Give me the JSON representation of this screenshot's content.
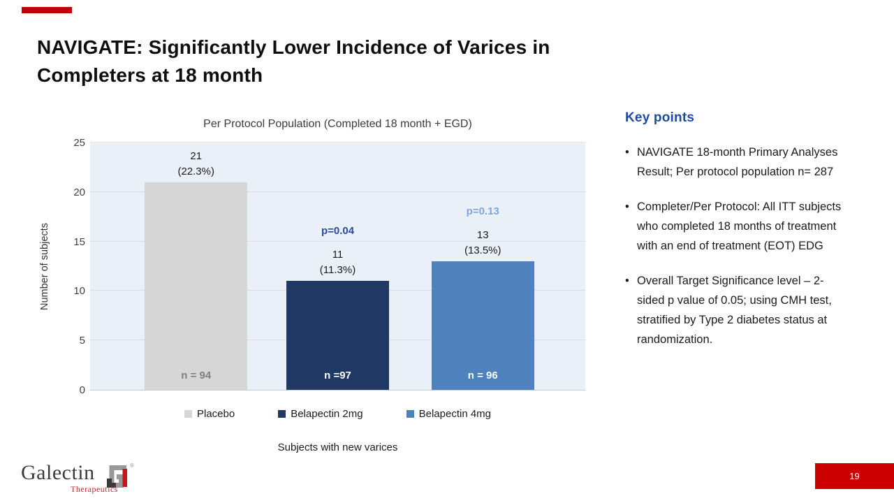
{
  "slide": {
    "title_line1": "NAVIGATE: Significantly Lower Incidence of Varices in",
    "title_line2": "Completers at 18 month",
    "page_number": "19"
  },
  "chart_data": {
    "type": "bar",
    "title": "Per Protocol Population (Completed 18 month + EGD)",
    "xlabel": "Subjects with new varices",
    "ylabel": "Number of subjects",
    "ylim": [
      0,
      25
    ],
    "yticks": [
      0,
      5,
      10,
      15,
      20,
      25
    ],
    "grid": true,
    "legend_position": "bottom",
    "plot_bg": "#EAF0F8",
    "categories": [
      "Placebo",
      "Belapectin 2mg",
      "Belapectin 4mg"
    ],
    "values": [
      21,
      11,
      13
    ],
    "bars": [
      {
        "category": "Placebo",
        "value": 21,
        "value_label": "21",
        "pct_label": "(22.3%)",
        "n_label": "n = 94",
        "n_color": "#7F7F7F",
        "p_label": "",
        "p_color": "",
        "color": "#D6D6D6"
      },
      {
        "category": "Belapectin 2mg",
        "value": 11,
        "value_label": "11",
        "pct_label": "(11.3%)",
        "n_label": "n =97",
        "n_color": "#FFFFFF",
        "p_label": "p=0.04",
        "p_color": "#2B4A9B",
        "color": "#1F3864"
      },
      {
        "category": "Belapectin 4mg",
        "value": 13,
        "value_label": "13",
        "pct_label": "(13.5%)",
        "n_label": "n = 96",
        "n_color": "#FFFFFF",
        "p_label": "p=0.13",
        "p_color": "#7FA6D9",
        "color": "#4F81BD"
      }
    ],
    "legend": [
      {
        "label": "Placebo",
        "color": "#D6D6D6"
      },
      {
        "label": "Belapectin 2mg",
        "color": "#1F3864"
      },
      {
        "label": "Belapectin 4mg",
        "color": "#4F81BD"
      }
    ]
  },
  "key_points": {
    "heading": "Key points",
    "bullets": [
      "NAVIGATE 18-month Primary Analyses Result; Per protocol population n= 287",
      "Completer/Per Protocol: All ITT subjects who completed 18 months of treatment with an end of treatment (EOT) EDG",
      "Overall Target Significance level – 2-sided p value of 0.05; using CMH test, stratified by Type 2 diabetes status at randomization."
    ]
  },
  "footer": {
    "logo_word": "Galectin",
    "logo_sub": "Therapeutics",
    "registered_mark": "®",
    "logo_mark_icon": "galectin-gt-monogram-icon"
  },
  "colors": {
    "accent_red": "#C00000",
    "page_box_red": "#CC0000",
    "keypoints_blue": "#2149A4",
    "logo_red": "#C0272D",
    "logo_gray": "#97999B",
    "logo_dark": "#3A3A3A"
  }
}
